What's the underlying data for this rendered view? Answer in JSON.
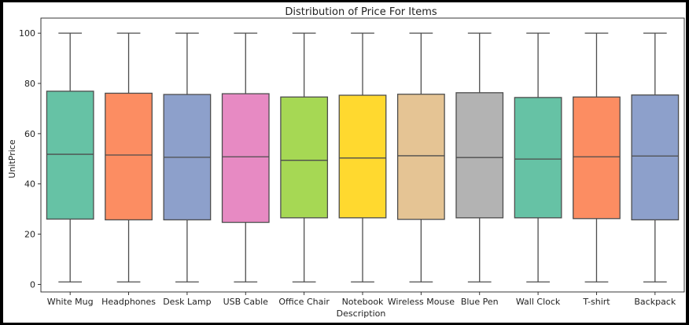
{
  "chart_data": {
    "type": "boxplot",
    "title": "Distribution of Price For Items",
    "xlabel": "Description",
    "ylabel": "UnitPrice",
    "ylim": [
      -3,
      106
    ],
    "yticks": [
      0,
      20,
      40,
      60,
      80,
      100
    ],
    "grid": false,
    "categories": [
      "White Mug",
      "Headphones",
      "Desk Lamp",
      "USB Cable",
      "Office Chair",
      "Notebook",
      "Wireless Mouse",
      "Blue Pen",
      "Wall Clock",
      "T-shirt",
      "Backpack"
    ],
    "boxes": [
      {
        "min": 1,
        "q1": 26.0,
        "median": 51.8,
        "q3": 76.9,
        "max": 100,
        "color": "#66c2a5"
      },
      {
        "min": 1,
        "q1": 25.7,
        "median": 51.5,
        "q3": 76.1,
        "max": 100,
        "color": "#fc8d62"
      },
      {
        "min": 1,
        "q1": 25.7,
        "median": 50.6,
        "q3": 75.6,
        "max": 100,
        "color": "#8da0cb"
      },
      {
        "min": 1,
        "q1": 24.7,
        "median": 50.8,
        "q3": 75.9,
        "max": 100,
        "color": "#e78ac3"
      },
      {
        "min": 1,
        "q1": 26.5,
        "median": 49.4,
        "q3": 74.6,
        "max": 100,
        "color": "#a6d854"
      },
      {
        "min": 1,
        "q1": 26.5,
        "median": 50.3,
        "q3": 75.3,
        "max": 100,
        "color": "#ffd92f"
      },
      {
        "min": 1,
        "q1": 25.9,
        "median": 51.2,
        "q3": 75.7,
        "max": 100,
        "color": "#e5c494"
      },
      {
        "min": 1,
        "q1": 26.5,
        "median": 50.5,
        "q3": 76.3,
        "max": 100,
        "color": "#b3b3b3"
      },
      {
        "min": 1,
        "q1": 26.5,
        "median": 49.9,
        "q3": 74.4,
        "max": 100,
        "color": "#66c2a5"
      },
      {
        "min": 1,
        "q1": 26.2,
        "median": 50.8,
        "q3": 74.6,
        "max": 100,
        "color": "#fc8d62"
      },
      {
        "min": 1,
        "q1": 25.7,
        "median": 51.1,
        "q3": 75.4,
        "max": 100,
        "color": "#8da0cb"
      }
    ]
  }
}
